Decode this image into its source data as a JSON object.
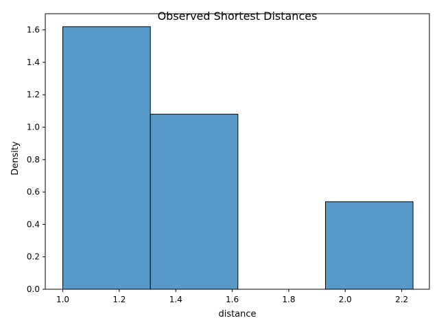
{
  "chart_data": {
    "type": "bar",
    "title": "Observed Shortest Distances",
    "xlabel": "distance",
    "ylabel": "Density",
    "xlim": [
      0.938,
      2.298
    ],
    "ylim": [
      0,
      1.7
    ],
    "bins": [
      {
        "x0": 1.0,
        "x1": 1.31,
        "value": 1.62
      },
      {
        "x0": 1.31,
        "x1": 1.62,
        "value": 1.08
      },
      {
        "x0": 1.62,
        "x1": 1.93,
        "value": 0.0
      },
      {
        "x0": 1.93,
        "x1": 2.24,
        "value": 0.54
      }
    ],
    "xticks": [
      1.0,
      1.2,
      1.4,
      1.6,
      1.8,
      2.0,
      2.2
    ],
    "xtick_labels": [
      "1.0",
      "1.2",
      "1.4",
      "1.6",
      "1.8",
      "2.0",
      "2.2"
    ],
    "yticks": [
      0.0,
      0.2,
      0.4,
      0.6,
      0.8,
      1.0,
      1.2,
      1.4,
      1.6
    ],
    "ytick_labels": [
      "0.0",
      "0.2",
      "0.4",
      "0.6",
      "0.8",
      "1.0",
      "1.2",
      "1.4",
      "1.6"
    ],
    "grid": false,
    "bar_color": "#5799c7",
    "edge_color": "#000000"
  }
}
